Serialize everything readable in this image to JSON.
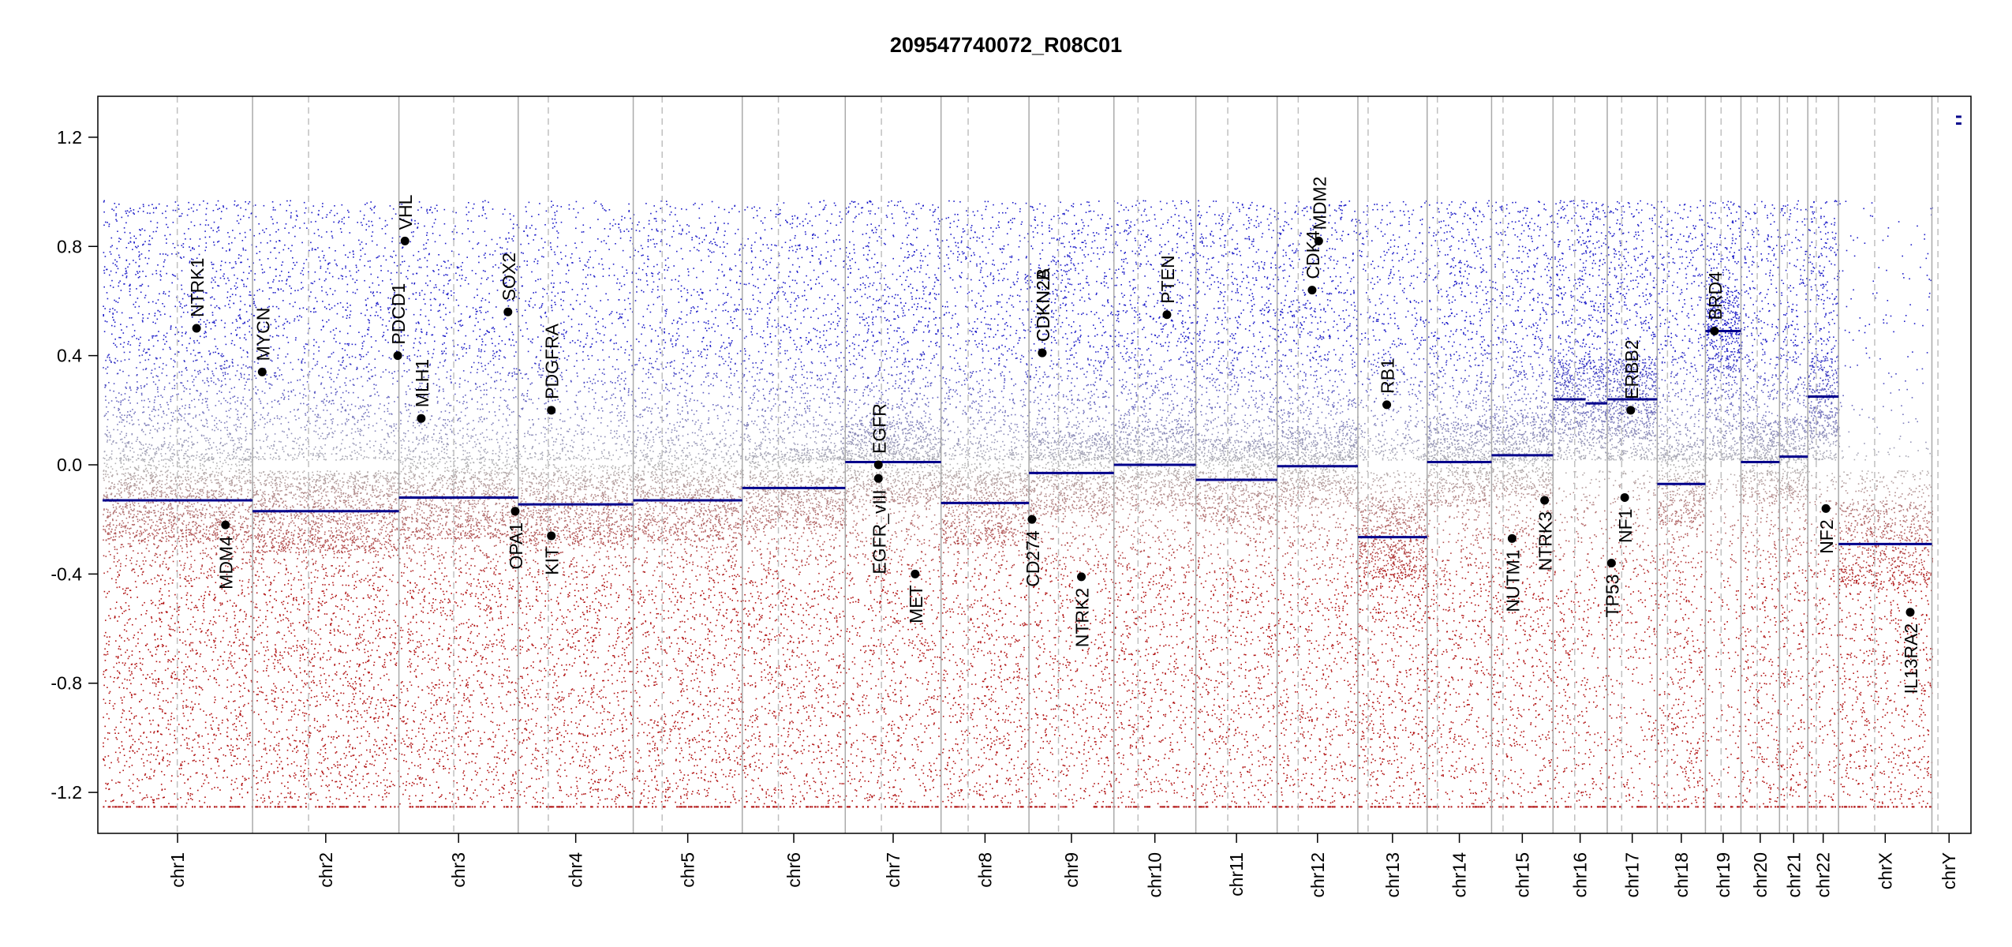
{
  "chart_data": {
    "type": "scatter",
    "title": "209547740072_R08C01",
    "xlabel": "",
    "ylabel": "",
    "ylim": [
      -1.35,
      1.35
    ],
    "yticks": [
      "1.2",
      "0.8",
      "0.4",
      "0.0",
      "-0.4",
      "-0.8",
      "-1.2"
    ],
    "ytick_values": [
      1.2,
      0.8,
      0.4,
      0.0,
      -0.4,
      -0.8,
      -1.2
    ],
    "grid": false,
    "colors": {
      "gain": "#1b1bc8",
      "loss": "#b01010",
      "neutral": "#b4b4b4",
      "segment": "#00008b",
      "boundary": "#aaaaaa",
      "centromere": "#c0c0c0"
    },
    "chromosomes": [
      {
        "name": "chr1",
        "length": 249,
        "centromere": 124,
        "segments": [
          {
            "start": 0,
            "end": 249,
            "value": -0.13
          }
        ],
        "gain_density": 1.0,
        "loss_density": 1.15
      },
      {
        "name": "chr2",
        "length": 243,
        "centromere": 93,
        "segments": [
          {
            "start": 0,
            "end": 243,
            "value": -0.17
          }
        ],
        "gain_density": 0.8,
        "loss_density": 1.25
      },
      {
        "name": "chr3",
        "length": 198,
        "centromere": 91,
        "segments": [
          {
            "start": 0,
            "end": 198,
            "value": -0.12
          }
        ],
        "gain_density": 0.8,
        "loss_density": 1.15
      },
      {
        "name": "chr4",
        "length": 191,
        "centromere": 50,
        "segments": [
          {
            "start": 0,
            "end": 191,
            "value": -0.145
          }
        ],
        "gain_density": 0.7,
        "loss_density": 1.15
      },
      {
        "name": "chr5",
        "length": 181,
        "centromere": 48,
        "segments": [
          {
            "start": 0,
            "end": 181,
            "value": -0.13
          }
        ],
        "gain_density": 0.8,
        "loss_density": 1.15
      },
      {
        "name": "chr6",
        "length": 171,
        "centromere": 60,
        "segments": [
          {
            "start": 0,
            "end": 171,
            "value": -0.085
          }
        ],
        "gain_density": 0.9,
        "loss_density": 1.1
      },
      {
        "name": "chr7",
        "length": 159,
        "centromere": 60,
        "segments": [
          {
            "start": 0,
            "end": 159,
            "value": 0.01
          }
        ],
        "gain_density": 1.05,
        "loss_density": 1.0
      },
      {
        "name": "chr8",
        "length": 146,
        "centromere": 45,
        "segments": [
          {
            "start": 0,
            "end": 146,
            "value": -0.14
          }
        ],
        "gain_density": 0.9,
        "loss_density": 1.1
      },
      {
        "name": "chr9",
        "length": 141,
        "centromere": 49,
        "segments": [
          {
            "start": 0,
            "end": 141,
            "value": -0.03
          }
        ],
        "gain_density": 1.05,
        "loss_density": 1.0
      },
      {
        "name": "chr10",
        "length": 136,
        "centromere": 40,
        "segments": [
          {
            "start": 0,
            "end": 136,
            "value": 0.0
          }
        ],
        "gain_density": 1.05,
        "loss_density": 1.0
      },
      {
        "name": "chr11",
        "length": 135,
        "centromere": 53,
        "segments": [
          {
            "start": 0,
            "end": 135,
            "value": -0.055
          }
        ],
        "gain_density": 1.05,
        "loss_density": 1.0
      },
      {
        "name": "chr12",
        "length": 134,
        "centromere": 35,
        "segments": [
          {
            "start": 0,
            "end": 134,
            "value": -0.005
          }
        ],
        "gain_density": 1.05,
        "loss_density": 1.0
      },
      {
        "name": "chr13",
        "length": 115,
        "centromere": 17,
        "segments": [
          {
            "start": 0,
            "end": 115,
            "value": -0.265
          }
        ],
        "gain_density": 0.8,
        "loss_density": 1.2
      },
      {
        "name": "chr14",
        "length": 107,
        "centromere": 17,
        "segments": [
          {
            "start": 0,
            "end": 107,
            "value": 0.01
          }
        ],
        "gain_density": 1.05,
        "loss_density": 1.0
      },
      {
        "name": "chr15",
        "length": 102,
        "centromere": 19,
        "segments": [
          {
            "start": 0,
            "end": 102,
            "value": 0.035
          }
        ],
        "gain_density": 1.05,
        "loss_density": 1.0
      },
      {
        "name": "chr16",
        "length": 90,
        "centromere": 36,
        "segments": [
          {
            "start": 0,
            "end": 54,
            "value": 0.24
          },
          {
            "start": 54,
            "end": 90,
            "value": 0.225
          }
        ],
        "gain_density": 1.3,
        "loss_density": 0.75
      },
      {
        "name": "chr17",
        "length": 83,
        "centromere": 24,
        "segments": [
          {
            "start": 0,
            "end": 83,
            "value": 0.24
          }
        ],
        "gain_density": 1.3,
        "loss_density": 0.75
      },
      {
        "name": "chr18",
        "length": 80,
        "centromere": 17,
        "segments": [
          {
            "start": 0,
            "end": 80,
            "value": -0.07
          }
        ],
        "gain_density": 1.0,
        "loss_density": 1.0
      },
      {
        "name": "chr19",
        "length": 59,
        "centromere": 26,
        "segments": [
          {
            "start": 0,
            "end": 59,
            "value": 0.49
          }
        ],
        "gain_density": 1.6,
        "loss_density": 0.55
      },
      {
        "name": "chr20",
        "length": 64,
        "centromere": 27,
        "segments": [
          {
            "start": 0,
            "end": 64,
            "value": 0.01
          }
        ],
        "gain_density": 1.05,
        "loss_density": 1.0
      },
      {
        "name": "chr21",
        "length": 47,
        "centromere": 13,
        "segments": [
          {
            "start": 0,
            "end": 47,
            "value": 0.03
          }
        ],
        "gain_density": 1.05,
        "loss_density": 1.0
      },
      {
        "name": "chr22",
        "length": 51,
        "centromere": 14,
        "segments": [
          {
            "start": 0,
            "end": 51,
            "value": 0.25
          }
        ],
        "gain_density": 1.3,
        "loss_density": 0.75
      },
      {
        "name": "chrX",
        "length": 155,
        "centromere": 60,
        "segments": [
          {
            "start": 0,
            "end": 155,
            "value": -0.29
          }
        ],
        "gain_density": 0.15,
        "loss_density": 1.1
      },
      {
        "name": "chrY",
        "length": 57,
        "centromere": 10,
        "segments": [
          {
            "start": 40,
            "end": 49,
            "value": 1.275
          },
          {
            "start": 40,
            "end": 49,
            "value": 1.25
          }
        ],
        "gain_density": 0.0,
        "loss_density": 0.0
      }
    ],
    "genes": [
      {
        "name": "NTRK1",
        "chr": "chr1",
        "pos": 156,
        "value": 0.5,
        "label_side": "above"
      },
      {
        "name": "MDM4",
        "chr": "chr1",
        "pos": 204,
        "value": -0.22,
        "label_side": "below"
      },
      {
        "name": "MYCN",
        "chr": "chr2",
        "pos": 16,
        "value": 0.34,
        "label_side": "above"
      },
      {
        "name": "PDCD1",
        "chr": "chr2",
        "pos": 241,
        "value": 0.4,
        "label_side": "above"
      },
      {
        "name": "VHL",
        "chr": "chr3",
        "pos": 10,
        "value": 0.82,
        "label_side": "above"
      },
      {
        "name": "MLH1",
        "chr": "chr3",
        "pos": 37,
        "value": 0.17,
        "label_side": "above"
      },
      {
        "name": "SOX2",
        "chr": "chr3",
        "pos": 181,
        "value": 0.56,
        "label_side": "above"
      },
      {
        "name": "OPA1",
        "chr": "chr3",
        "pos": 193,
        "value": -0.17,
        "label_side": "below"
      },
      {
        "name": "PDGFRA",
        "chr": "chr4",
        "pos": 55,
        "value": 0.2,
        "label_side": "above"
      },
      {
        "name": "KIT",
        "chr": "chr4",
        "pos": 55,
        "value": -0.26,
        "label_side": "below"
      },
      {
        "name": "EGFR",
        "chr": "chr7",
        "pos": 55,
        "value": 0.0,
        "label_side": "above"
      },
      {
        "name": "EGFR_vIII",
        "chr": "chr7",
        "pos": 55,
        "value": -0.05,
        "label_side": "below"
      },
      {
        "name": "MET",
        "chr": "chr7",
        "pos": 116,
        "value": -0.4,
        "label_side": "below"
      },
      {
        "name": "CD274",
        "chr": "chr9",
        "pos": 5,
        "value": -0.2,
        "label_side": "below"
      },
      {
        "name": "CDKN2A",
        "chr": "chr9",
        "pos": 22,
        "value": 0.41,
        "label_side": "above"
      },
      {
        "name": "CDKN2B",
        "chr": "chr9",
        "pos": 22,
        "value": 0.41,
        "label_side": "above"
      },
      {
        "name": "NTRK2",
        "chr": "chr9",
        "pos": 87,
        "value": -0.41,
        "label_side": "below"
      },
      {
        "name": "PTEN",
        "chr": "chr10",
        "pos": 88,
        "value": 0.55,
        "label_side": "above"
      },
      {
        "name": "CDK4",
        "chr": "chr12",
        "pos": 58,
        "value": 0.64,
        "label_side": "above"
      },
      {
        "name": "MDM2",
        "chr": "chr12",
        "pos": 69,
        "value": 0.82,
        "label_side": "above"
      },
      {
        "name": "RB1",
        "chr": "chr13",
        "pos": 48,
        "value": 0.22,
        "label_side": "above"
      },
      {
        "name": "NUTM1",
        "chr": "chr15",
        "pos": 34,
        "value": -0.27,
        "label_side": "below"
      },
      {
        "name": "NTRK3",
        "chr": "chr15",
        "pos": 88,
        "value": -0.13,
        "label_side": "below"
      },
      {
        "name": "TP53",
        "chr": "chr17",
        "pos": 7,
        "value": -0.36,
        "label_side": "below"
      },
      {
        "name": "NF1",
        "chr": "chr17",
        "pos": 29,
        "value": -0.12,
        "label_side": "below"
      },
      {
        "name": "ERBB2",
        "chr": "chr17",
        "pos": 39,
        "value": 0.2,
        "label_side": "above"
      },
      {
        "name": "BRD4",
        "chr": "chr19",
        "pos": 15,
        "value": 0.49,
        "label_side": "above"
      },
      {
        "name": "NF2",
        "chr": "chr22",
        "pos": 30,
        "value": -0.16,
        "label_side": "below"
      },
      {
        "name": "IL13RA2",
        "chr": "chrX",
        "pos": 119,
        "value": -0.54,
        "label_side": "below"
      }
    ]
  }
}
